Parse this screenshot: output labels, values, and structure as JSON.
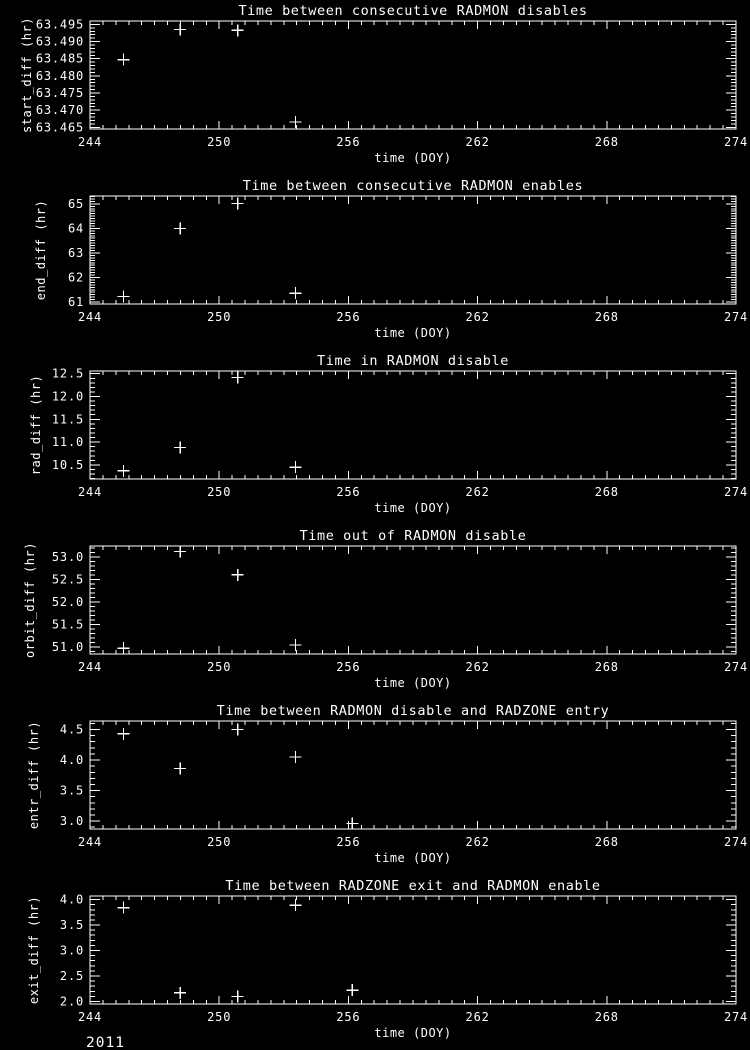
{
  "page": {
    "background_color": "#000000",
    "plot_color": "#ffffff"
  },
  "footer": {
    "year": "2011"
  },
  "chart_data": [
    {
      "type": "scatter",
      "title": "Time between consecutive RADMON disables",
      "xlabel": "time (DOY)",
      "ylabel": "start_diff (hr)",
      "xlim": [
        244,
        274
      ],
      "ylim": [
        63.4645,
        63.496
      ],
      "xticks": [
        244,
        250,
        256,
        262,
        268,
        274
      ],
      "yticks": [
        63.465,
        63.47,
        63.475,
        63.48,
        63.485,
        63.49,
        63.495
      ],
      "ytick_labels": [
        "63.465",
        "63.470",
        "63.475",
        "63.480",
        "63.485",
        "63.490",
        "63.495"
      ],
      "x_minor_divisions": 10,
      "y_minor_divisions": 5,
      "grid": false,
      "marker": "plus",
      "points": {
        "x": [
          245.55,
          248.19,
          250.86,
          253.55
        ],
        "y": [
          63.4847,
          63.4935,
          63.4933,
          63.4665
        ]
      }
    },
    {
      "type": "scatter",
      "title": "Time between consecutive RADMON enables",
      "xlabel": "time (DOY)",
      "ylabel": "end_diff (hr)",
      "xlim": [
        244,
        274
      ],
      "ylim": [
        60.92,
        65.32
      ],
      "xticks": [
        244,
        250,
        256,
        262,
        268,
        274
      ],
      "yticks": [
        61,
        62,
        63,
        64,
        65
      ],
      "ytick_labels": [
        "61",
        "62",
        "63",
        "64",
        "65"
      ],
      "x_minor_divisions": 10,
      "y_minor_divisions": 10,
      "grid": false,
      "marker": "plus",
      "points": {
        "x": [
          245.55,
          248.19,
          250.86,
          253.55
        ],
        "y": [
          61.22,
          64.0,
          65.02,
          61.36
        ]
      }
    },
    {
      "type": "scatter",
      "title": "Time in RADMON disable",
      "xlabel": "time (DOY)",
      "ylabel": "rad_diff (hr)",
      "xlim": [
        244,
        274
      ],
      "ylim": [
        10.19,
        12.56
      ],
      "xticks": [
        244,
        250,
        256,
        262,
        268,
        274
      ],
      "yticks": [
        10.5,
        11.0,
        11.5,
        12.0,
        12.5
      ],
      "ytick_labels": [
        "10.5",
        "11.0",
        "11.5",
        "12.0",
        "12.5"
      ],
      "x_minor_divisions": 10,
      "y_minor_divisions": 5,
      "grid": false,
      "marker": "plus",
      "points": {
        "x": [
          245.55,
          248.19,
          250.86,
          253.55
        ],
        "y": [
          10.37,
          10.88,
          12.42,
          10.45
        ]
      }
    },
    {
      "type": "scatter",
      "title": "Time out of RADMON disable",
      "xlabel": "time (DOY)",
      "ylabel": "orbit_diff (hr)",
      "xlim": [
        244,
        274
      ],
      "ylim": [
        50.84,
        53.24
      ],
      "xticks": [
        244,
        250,
        256,
        262,
        268,
        274
      ],
      "yticks": [
        51.0,
        51.5,
        52.0,
        52.5,
        53.0
      ],
      "ytick_labels": [
        "51.0",
        "51.5",
        "52.0",
        "52.5",
        "53.0"
      ],
      "x_minor_divisions": 10,
      "y_minor_divisions": 5,
      "grid": false,
      "marker": "plus",
      "points": {
        "x": [
          245.55,
          248.19,
          250.86,
          253.55
        ],
        "y": [
          50.97,
          53.12,
          52.6,
          51.04
        ]
      }
    },
    {
      "type": "scatter",
      "title": "Time between RADMON disable and RADZONE entry",
      "xlabel": "time (DOY)",
      "ylabel": "entr_diff (hr)",
      "xlim": [
        244,
        274
      ],
      "ylim": [
        2.87,
        4.64
      ],
      "xticks": [
        244,
        250,
        256,
        262,
        268,
        274
      ],
      "yticks": [
        3.0,
        3.5,
        4.0,
        4.5
      ],
      "ytick_labels": [
        "3.0",
        "3.5",
        "4.0",
        "4.5"
      ],
      "x_minor_divisions": 10,
      "y_minor_divisions": 5,
      "grid": false,
      "marker": "plus",
      "points": {
        "x": [
          245.55,
          248.19,
          250.86,
          253.55,
          256.18
        ],
        "y": [
          4.43,
          3.86,
          4.5,
          4.05,
          2.96
        ]
      }
    },
    {
      "type": "scatter",
      "title": "Time between RADZONE exit and RADMON enable",
      "xlabel": "time (DOY)",
      "ylabel": "exit_diff (hr)",
      "xlim": [
        244,
        274
      ],
      "ylim": [
        1.95,
        4.07
      ],
      "xticks": [
        244,
        250,
        256,
        262,
        268,
        274
      ],
      "yticks": [
        2.0,
        2.5,
        3.0,
        3.5,
        4.0
      ],
      "ytick_labels": [
        "2.0",
        "2.5",
        "3.0",
        "3.5",
        "4.0"
      ],
      "x_minor_divisions": 10,
      "y_minor_divisions": 5,
      "grid": false,
      "marker": "plus",
      "points": {
        "x": [
          245.55,
          248.19,
          250.86,
          253.55,
          256.18
        ],
        "y": [
          3.84,
          2.17,
          2.1,
          3.89,
          2.22
        ]
      }
    }
  ]
}
